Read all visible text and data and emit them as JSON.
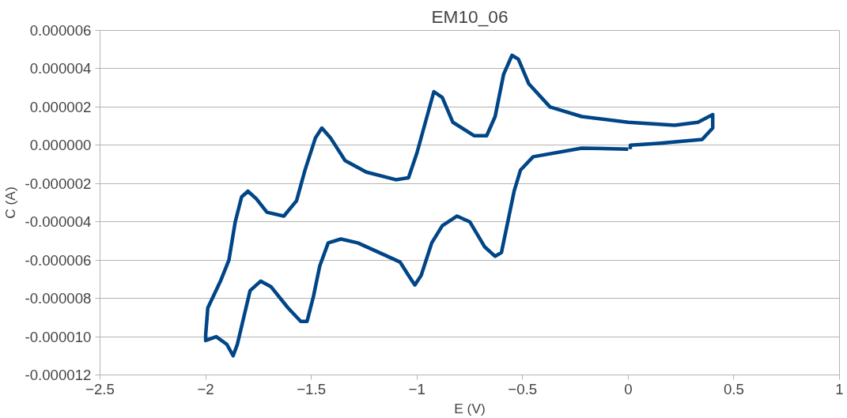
{
  "chart_data": {
    "type": "line",
    "title": "EM10_06",
    "xlabel": "E (V)",
    "ylabel": "C (A)",
    "xlim": [
      -2.5,
      1
    ],
    "xticks": [
      -2.5,
      -2,
      -1.5,
      -1,
      -0.5,
      0,
      0.5,
      1
    ],
    "ylim": [
      -1.2e-05,
      6e-06
    ],
    "yticks": [
      {
        "value": -1.2e-05,
        "label": "-0.000012"
      },
      {
        "value": -1e-05,
        "label": "-0.000010"
      },
      {
        "value": -8e-06,
        "label": "-0.000008"
      },
      {
        "value": -6e-06,
        "label": "-0.000006"
      },
      {
        "value": -4e-06,
        "label": "-0.000004"
      },
      {
        "value": -2e-06,
        "label": "-0.000002"
      },
      {
        "value": 0,
        "label": "0.000000"
      },
      {
        "value": 2e-06,
        "label": "0.000002"
      },
      {
        "value": 4e-06,
        "label": "0.000004"
      },
      {
        "value": 6e-06,
        "label": "0.000006"
      }
    ],
    "grid": "y",
    "marker": "none",
    "line_style": "solid",
    "series": [
      {
        "color": "#004586",
        "x": [
          0.0,
          -0.22,
          -0.45,
          -0.51,
          -0.54,
          -0.57,
          -0.6,
          -0.63,
          -0.68,
          -0.75,
          -0.81,
          -0.88,
          -0.93,
          -0.98,
          -1.01,
          -1.04,
          -1.08,
          -1.16,
          -1.28,
          -1.36,
          -1.42,
          -1.46,
          -1.49,
          -1.52,
          -1.55,
          -1.61,
          -1.69,
          -1.74,
          -1.79,
          -1.82,
          -1.85,
          -1.87,
          -1.9,
          -1.95,
          -2.0,
          -2.0,
          -1.99,
          -1.93,
          -1.89,
          -1.86,
          -1.83,
          -1.8,
          -1.76,
          -1.71,
          -1.63,
          -1.57,
          -1.53,
          -1.48,
          -1.45,
          -1.41,
          -1.34,
          -1.24,
          -1.1,
          -1.04,
          -1.0,
          -0.96,
          -0.92,
          -0.88,
          -0.83,
          -0.73,
          -0.67,
          -0.63,
          -0.59,
          -0.55,
          -0.52,
          -0.47,
          -0.37,
          -0.22,
          0.0,
          0.22,
          0.33,
          0.4,
          0.4,
          0.35,
          0.14,
          0.01,
          0.01
        ],
        "values": [
          -2e-07,
          -1.5e-07,
          -6e-07,
          -1.3e-06,
          -2.4e-06,
          -4e-06,
          -5.6e-06,
          -5.8e-06,
          -5.3e-06,
          -4e-06,
          -3.7e-06,
          -4.2e-06,
          -5.1e-06,
          -6.8e-06,
          -7.3e-06,
          -6.8e-06,
          -6.1e-06,
          -5.7e-06,
          -5.1e-06,
          -4.9e-06,
          -5.1e-06,
          -6.3e-06,
          -7.9e-06,
          -9.2e-06,
          -9.2e-06,
          -8.5e-06,
          -7.4e-06,
          -7.1e-06,
          -7.6e-06,
          -9e-06,
          -1.04e-05,
          -1.1e-05,
          -1.04e-05,
          -1e-05,
          -1.02e-05,
          -9.9e-06,
          -8.5e-06,
          -7.1e-06,
          -6e-06,
          -4e-06,
          -2.7e-06,
          -2.4e-06,
          -2.8e-06,
          -3.5e-06,
          -3.7e-06,
          -2.9e-06,
          -1.3e-06,
          4e-07,
          9e-07,
          4e-07,
          -8e-07,
          -1.4e-06,
          -1.8e-06,
          -1.7e-06,
          -4e-07,
          1.2e-06,
          2.8e-06,
          2.5e-06,
          1.2e-06,
          5e-07,
          5e-07,
          1.5e-06,
          3.7e-06,
          4.7e-06,
          4.5e-06,
          3.2e-06,
          2e-06,
          1.5e-06,
          1.2e-06,
          1.05e-06,
          1.2e-06,
          1.6e-06,
          9e-07,
          3e-07,
          1e-07,
          0.0,
          -2e-07
        ]
      }
    ]
  }
}
